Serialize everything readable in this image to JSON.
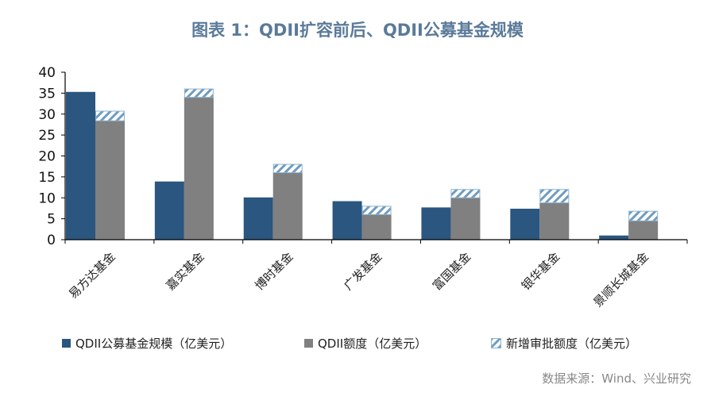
{
  "chart_data": {
    "type": "bar",
    "title": "图表 1：QDII扩容前后、QDII公募基金规模",
    "categories": [
      "易方达基金",
      "嘉实基金",
      "博时基金",
      "广发基金",
      "富国基金",
      "银华基金",
      "景顺长城基金"
    ],
    "series": [
      {
        "name": "QDII公募基金规模（亿美元）",
        "values": [
          35.3,
          13.9,
          10.1,
          9.2,
          7.7,
          7.4,
          1.0
        ],
        "color": "#2a5680",
        "stack": "a"
      },
      {
        "name": "QDII额度（亿美元）",
        "values": [
          28.4,
          34.0,
          16.0,
          6.0,
          10.0,
          8.8,
          4.5
        ],
        "color": "#808080",
        "stack": "b"
      },
      {
        "name": "新增审批额度（亿美元）",
        "values": [
          2.3,
          2.0,
          2.0,
          2.0,
          2.0,
          3.2,
          2.3
        ],
        "color": "#8fb4d0",
        "pattern": "hatched",
        "stack": "b"
      }
    ],
    "ylim": [
      0,
      40
    ],
    "yticks": [
      0,
      5,
      10,
      15,
      20,
      25,
      30,
      35,
      40
    ],
    "grid": false,
    "legend": "bottom",
    "source": "数据来源：Wind、兴业研究"
  }
}
